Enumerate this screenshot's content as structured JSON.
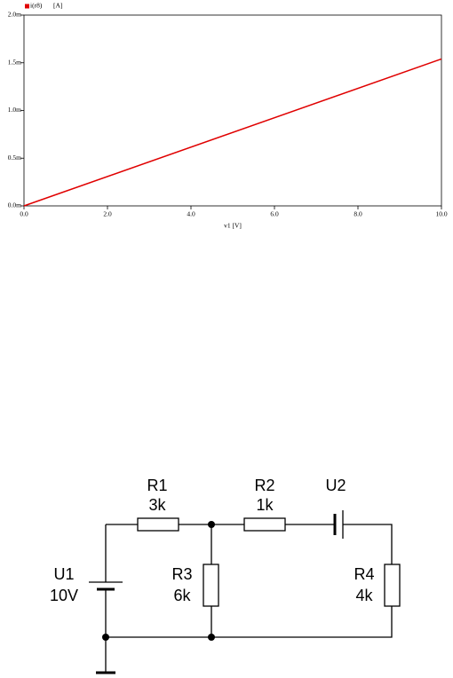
{
  "chart_data": {
    "type": "line",
    "ylabel": "[A]",
    "xlabel": "v1 [V]",
    "x": [
      0,
      10
    ],
    "series": [
      {
        "name": "i(r8)",
        "color": "#e00000",
        "values": [
          0,
          0.00154
        ]
      }
    ],
    "xlim": [
      0,
      10
    ],
    "xticks": [
      {
        "value": 0,
        "label": "0.0"
      },
      {
        "value": 2,
        "label": "2.0"
      },
      {
        "value": 4,
        "label": "4.0"
      },
      {
        "value": 6,
        "label": "6.0"
      },
      {
        "value": 8,
        "label": "8.0"
      },
      {
        "value": 10,
        "label": "10.0"
      }
    ],
    "ylim": [
      0,
      0.002
    ],
    "yticks": [
      {
        "value": 0,
        "label": "0.0m"
      },
      {
        "value": 0.0005,
        "label": "0.5m"
      },
      {
        "value": 0.001,
        "label": "1.0m"
      },
      {
        "value": 0.0015,
        "label": "1.5m"
      },
      {
        "value": 0.002,
        "label": "2.0m"
      }
    ]
  },
  "circuit": {
    "components": [
      {
        "name": "U1",
        "value": "10V"
      },
      {
        "name": "R1",
        "value": "3k"
      },
      {
        "name": "R2",
        "value": "1k"
      },
      {
        "name": "U2"
      },
      {
        "name": "R3",
        "value": "6k"
      },
      {
        "name": "R4",
        "value": "4k"
      }
    ]
  }
}
